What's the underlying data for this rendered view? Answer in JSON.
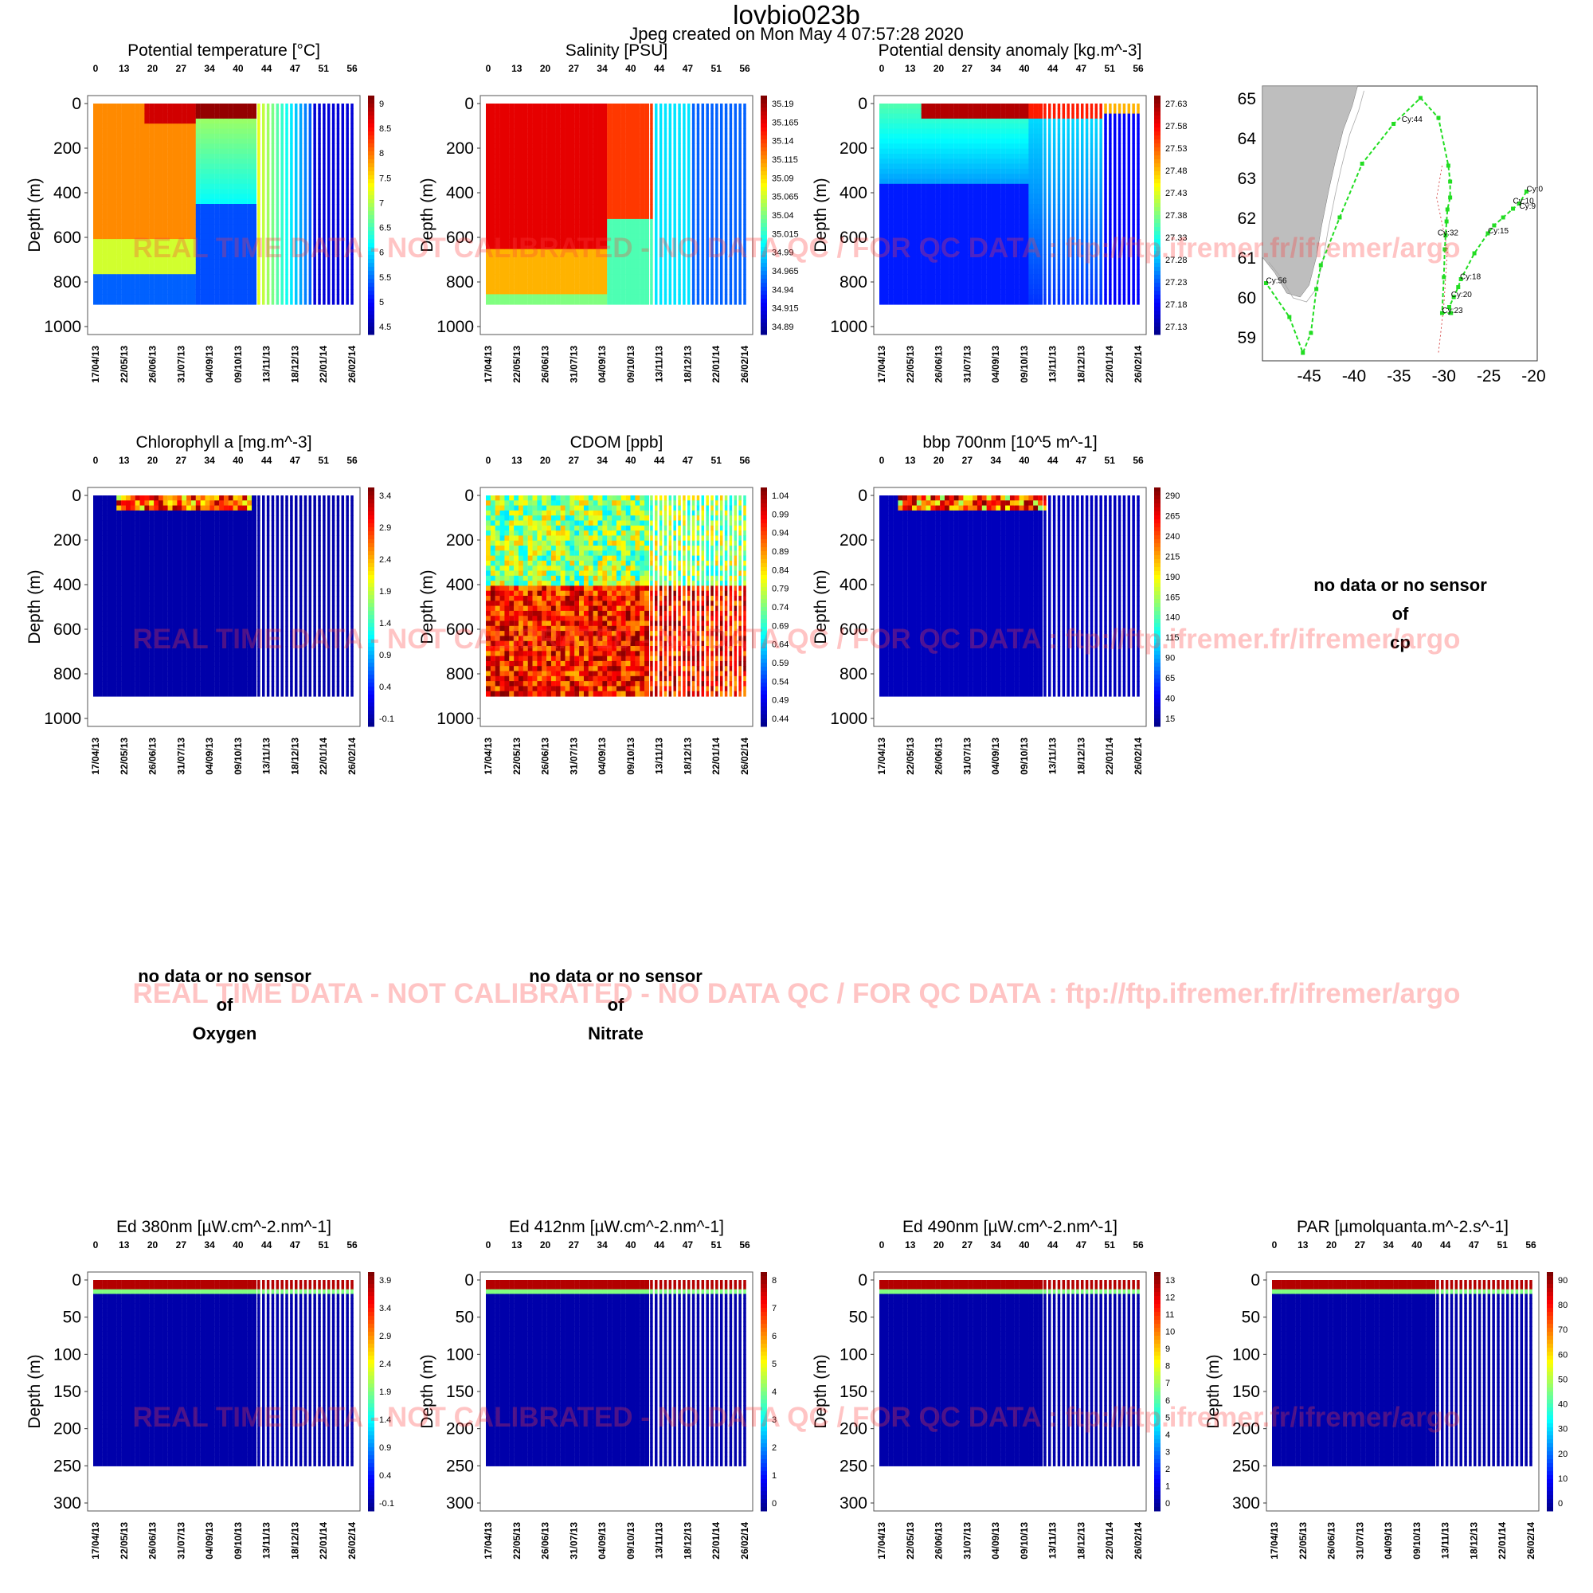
{
  "header": {
    "title": "lovbio023b",
    "created": "Jpeg created on  Mon May  4 07:57:28 2020"
  },
  "watermark": "REAL TIME DATA - NOT CALIBRATED - NO DATA QC   /  FOR QC DATA : ftp://ftp.ifremer.fr/ifremer/argo",
  "ylabel": "Depth (m)",
  "cycle_ticks": [
    "0",
    "13",
    "20",
    "27",
    "34",
    "40",
    "44",
    "47",
    "51",
    "56"
  ],
  "date_ticks": [
    "17/04/13",
    "22/05/13",
    "26/06/13",
    "31/07/13",
    "04/09/13",
    "09/10/13",
    "13/11/13",
    "18/12/13",
    "22/01/14",
    "26/02/14"
  ],
  "nodata": {
    "line1": "no data or no sensor",
    "line2": "of",
    "cp": "cp",
    "oxygen": "Oxygen",
    "nitrate": "Nitrate"
  },
  "map": {
    "lat_ticks": [
      "65",
      "64",
      "63",
      "62",
      "61",
      "60",
      "59"
    ],
    "lon_ticks": [
      "-45",
      "-40",
      "-35",
      "-30",
      "-25",
      "-20"
    ],
    "labels": [
      {
        "text": "Cy:0",
        "lon": -20.8,
        "lat": 62.65
      },
      {
        "text": "Cy:10",
        "lon": -22.3,
        "lat": 62.35
      },
      {
        "text": "Cy:9",
        "lon": -21.6,
        "lat": 62.22
      },
      {
        "text": "Cy:15",
        "lon": -25.1,
        "lat": 61.6
      },
      {
        "text": "Cy:18",
        "lon": -28.2,
        "lat": 60.45
      },
      {
        "text": "Cy:20",
        "lon": -29.2,
        "lat": 60.0
      },
      {
        "text": "Cy:23",
        "lon": -30.2,
        "lat": 59.6
      },
      {
        "text": "Cy:32",
        "lon": -30.7,
        "lat": 61.55
      },
      {
        "text": "Cy:44",
        "lon": -34.7,
        "lat": 64.4
      },
      {
        "text": "Cy:56",
        "lon": -49.8,
        "lat": 60.35
      }
    ],
    "track_lon": [
      -20.8,
      -21.6,
      -22.3,
      -23.4,
      -24.4,
      -25.1,
      -26.6,
      -28.1,
      -28.4,
      -28.9,
      -29.4,
      -29.2,
      -30.2,
      -30.0,
      -29.9,
      -29.8,
      -29.7,
      -29.6,
      -29.3,
      -29.3,
      -29.5,
      -30.6,
      -32.6,
      -35.6,
      -39.1,
      -41.6,
      -43.7,
      -44.2,
      -44.8,
      -45.7,
      -47.2,
      -49.8
    ],
    "track_lat": [
      62.65,
      62.35,
      62.22,
      62.0,
      61.8,
      61.6,
      61.1,
      60.45,
      60.25,
      60.0,
      59.75,
      59.6,
      59.6,
      60.5,
      61.2,
      61.55,
      61.9,
      62.2,
      62.5,
      62.9,
      63.3,
      64.5,
      65.0,
      64.35,
      63.35,
      62.0,
      60.8,
      60.2,
      59.1,
      58.6,
      59.5,
      60.35
    ],
    "colors": {
      "land": "#bebebe",
      "track": "#22dd22",
      "contour": "#cc2222"
    }
  },
  "colorbar": {
    "stops": [
      "#00008f",
      "#0000ff",
      "#0080ff",
      "#00ffff",
      "#80ff80",
      "#ffff00",
      "#ff8000",
      "#ff0000",
      "#800000"
    ]
  },
  "chart_data": [
    {
      "id": "temp",
      "type": "heatmap",
      "title": "Potential temperature [°C]",
      "ylim": [
        0,
        1000
      ],
      "yticks": [
        "0",
        "200",
        "400",
        "600",
        "800",
        "1000"
      ],
      "cbar": [
        "9",
        "8.5",
        "8",
        "7.5",
        "7",
        "6.5",
        "6",
        "5.5",
        "5",
        "4.5"
      ]
    },
    {
      "id": "sal",
      "type": "heatmap",
      "title": "Salinity [PSU]",
      "ylim": [
        0,
        1000
      ],
      "yticks": [
        "0",
        "200",
        "400",
        "600",
        "800",
        "1000"
      ],
      "cbar": [
        "35.19",
        "35.165",
        "35.14",
        "35.115",
        "35.09",
        "35.065",
        "35.04",
        "35.015",
        "34.99",
        "34.965",
        "34.94",
        "34.915",
        "34.89"
      ]
    },
    {
      "id": "dens",
      "type": "heatmap",
      "title": "Potential density anomaly [kg.m^-3]",
      "ylim": [
        0,
        1000
      ],
      "yticks": [
        "0",
        "200",
        "400",
        "600",
        "800",
        "1000"
      ],
      "cbar": [
        "27.63",
        "27.58",
        "27.53",
        "27.48",
        "27.43",
        "27.38",
        "27.33",
        "27.28",
        "27.23",
        "27.18",
        "27.13"
      ]
    },
    {
      "id": "chl",
      "type": "heatmap",
      "title": "Chlorophyll a [mg.m^-3]",
      "ylim": [
        0,
        1000
      ],
      "yticks": [
        "0",
        "200",
        "400",
        "600",
        "800",
        "1000"
      ],
      "cbar": [
        "3.4",
        "2.9",
        "2.4",
        "1.9",
        "1.4",
        "0.9",
        "0.4",
        "-0.1"
      ]
    },
    {
      "id": "cdom",
      "type": "heatmap",
      "title": "CDOM  [ppb]",
      "ylim": [
        0,
        1000
      ],
      "yticks": [
        "0",
        "200",
        "400",
        "600",
        "800",
        "1000"
      ],
      "cbar": [
        "1.04",
        "0.99",
        "0.94",
        "0.89",
        "0.84",
        "0.79",
        "0.74",
        "0.69",
        "0.64",
        "0.59",
        "0.54",
        "0.49",
        "0.44"
      ]
    },
    {
      "id": "bbp",
      "type": "heatmap",
      "title": "bbp 700nm [10^5 m^-1]",
      "ylim": [
        0,
        1000
      ],
      "yticks": [
        "0",
        "200",
        "400",
        "600",
        "800",
        "1000"
      ],
      "cbar": [
        "290",
        "265",
        "240",
        "215",
        "190",
        "165",
        "140",
        "115",
        "90",
        "65",
        "40",
        "15"
      ]
    },
    {
      "id": "ed380",
      "type": "heatmap",
      "title": "Ed 380nm [µW.cm^-2.nm^-1]",
      "ylim": [
        0,
        300
      ],
      "yticks": [
        "0",
        "50",
        "100",
        "150",
        "200",
        "250",
        "300"
      ],
      "cbar": [
        "3.9",
        "3.4",
        "2.9",
        "2.4",
        "1.9",
        "1.4",
        "0.9",
        "0.4",
        "-0.1"
      ]
    },
    {
      "id": "ed412",
      "type": "heatmap",
      "title": "Ed 412nm [µW.cm^-2.nm^-1]",
      "ylim": [
        0,
        300
      ],
      "yticks": [
        "0",
        "50",
        "100",
        "150",
        "200",
        "250",
        "300"
      ],
      "cbar": [
        "8",
        "7",
        "6",
        "5",
        "4",
        "3",
        "2",
        "1",
        "0"
      ]
    },
    {
      "id": "ed490",
      "type": "heatmap",
      "title": "Ed 490nm [µW.cm^-2.nm^-1]",
      "ylim": [
        0,
        300
      ],
      "yticks": [
        "0",
        "50",
        "100",
        "150",
        "200",
        "250",
        "300"
      ],
      "cbar": [
        "13",
        "12",
        "11",
        "10",
        "9",
        "8",
        "7",
        "6",
        "5",
        "4",
        "3",
        "2",
        "1",
        "0"
      ]
    },
    {
      "id": "par",
      "type": "heatmap",
      "title": "PAR [µmolquanta.m^-2.s^-1]",
      "ylim": [
        0,
        300
      ],
      "yticks": [
        "0",
        "50",
        "100",
        "150",
        "200",
        "250",
        "300"
      ],
      "cbar": [
        "90",
        "80",
        "70",
        "60",
        "50",
        "40",
        "30",
        "20",
        "10",
        "0"
      ]
    }
  ]
}
